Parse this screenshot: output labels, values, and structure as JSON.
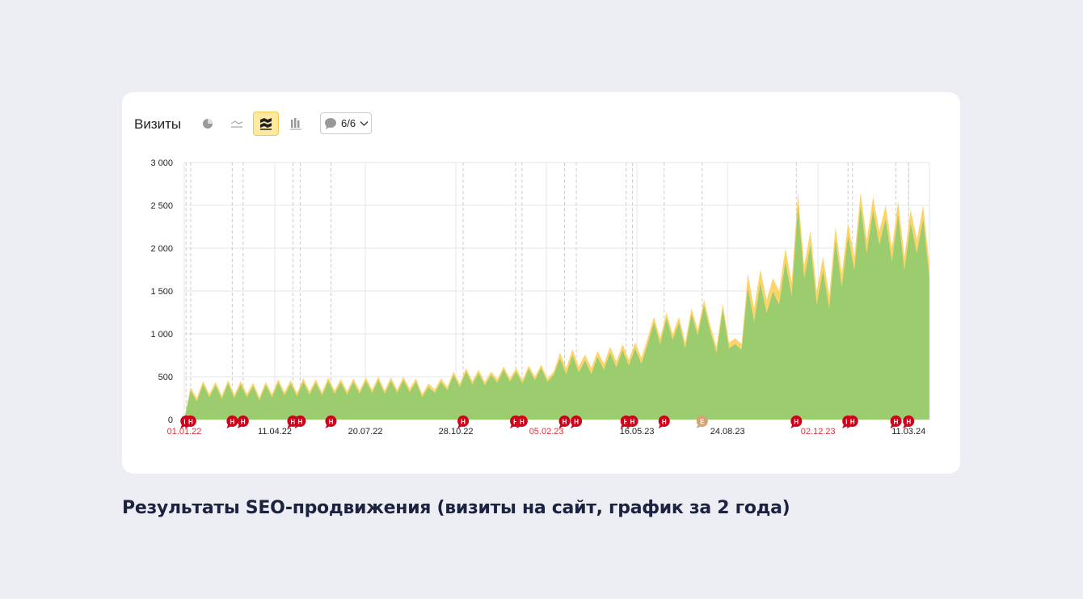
{
  "widget": {
    "title": "Визиты",
    "annotations_label": "6/6",
    "icons": [
      "pie-icon",
      "line-icon",
      "stacked-area-icon",
      "bar-icon",
      "comment-icon"
    ]
  },
  "caption": "Результаты SEO-продвижения (визиты на сайт, график за 2 года)",
  "colors": {
    "green": "#9bcd6e",
    "yellow": "#fbd46c",
    "marker": "#d0021b",
    "marker_alt": "#d4a373",
    "red_tick": "#e0303b"
  },
  "chart_data": {
    "type": "area",
    "stacked": true,
    "title": "Визиты",
    "xlabel": "",
    "ylabel": "",
    "ylim": [
      0,
      3000
    ],
    "xlim_days": [
      0,
      823
    ],
    "grid": true,
    "legend": "none",
    "yticks": [
      {
        "v": 0,
        "label": "0"
      },
      {
        "v": 500,
        "label": "500"
      },
      {
        "v": 1000,
        "label": "1 000"
      },
      {
        "v": 1500,
        "label": "1 500"
      },
      {
        "v": 2000,
        "label": "2 000"
      },
      {
        "v": 2500,
        "label": "2 500"
      },
      {
        "v": 3000,
        "label": "3 000"
      }
    ],
    "xticks": [
      {
        "d": 0,
        "label": "01.01.22",
        "red": true
      },
      {
        "d": 100,
        "label": "11.04.22"
      },
      {
        "d": 200,
        "label": "20.07.22"
      },
      {
        "d": 300,
        "label": "28.10.22"
      },
      {
        "d": 400,
        "label": "05.02.23",
        "red": true
      },
      {
        "d": 500,
        "label": "16.05.23"
      },
      {
        "d": 600,
        "label": "24.08.23"
      },
      {
        "d": 700,
        "label": "02.12.23",
        "red": true
      },
      {
        "d": 800,
        "label": "11.03.24"
      }
    ],
    "series": [
      {
        "name": "green",
        "values": [
          0,
          340,
          210,
          410,
          260,
          400,
          240,
          420,
          250,
          410,
          260,
          390,
          220,
          400,
          260,
          430,
          280,
          420,
          270,
          440,
          290,
          430,
          280,
          450,
          300,
          430,
          290,
          440,
          300,
          450,
          310,
          460,
          300,
          450,
          310,
          460,
          320,
          440,
          260,
          380,
          310,
          440,
          340,
          520,
          380,
          560,
          410,
          540,
          400,
          520,
          430,
          580,
          440,
          560,
          420,
          590,
          460,
          600,
          440,
          520,
          710,
          530,
          750,
          550,
          690,
          530,
          730,
          580,
          780,
          610,
          810,
          630,
          830,
          650,
          880,
          1130,
          880,
          1180,
          930,
          1130,
          830,
          1230,
          980,
          1330,
          1030,
          780,
          1280,
          830,
          880,
          810,
          1540,
          1140,
          1590,
          1240,
          1490,
          1340,
          1840,
          1440,
          2490,
          1640,
          2040,
          1340,
          1740,
          1290,
          2090,
          1540,
          2140,
          1740,
          2490,
          1940,
          2440,
          2040,
          2340,
          1840,
          2390,
          1740,
          2290,
          1940,
          2340,
          1640
        ]
      },
      {
        "name": "yellow",
        "values": [
          0,
          40,
          40,
          40,
          40,
          40,
          40,
          40,
          40,
          40,
          40,
          40,
          40,
          40,
          40,
          40,
          40,
          40,
          40,
          40,
          40,
          40,
          40,
          40,
          40,
          40,
          40,
          40,
          40,
          40,
          40,
          40,
          40,
          40,
          40,
          40,
          40,
          40,
          40,
          40,
          40,
          40,
          40,
          40,
          40,
          40,
          40,
          40,
          40,
          40,
          40,
          40,
          40,
          40,
          40,
          40,
          40,
          40,
          40,
          40,
          70,
          70,
          70,
          70,
          70,
          70,
          70,
          70,
          70,
          70,
          70,
          70,
          70,
          70,
          70,
          70,
          70,
          70,
          70,
          70,
          70,
          70,
          70,
          70,
          70,
          70,
          70,
          70,
          70,
          70,
          160,
          160,
          160,
          160,
          160,
          160,
          160,
          160,
          160,
          160,
          160,
          160,
          160,
          160,
          160,
          160,
          160,
          160,
          160,
          160,
          160,
          160,
          160,
          160,
          160,
          160,
          160,
          160,
          160,
          160
        ]
      }
    ],
    "annotations": [
      {
        "d": 2,
        "label": "Н"
      },
      {
        "d": 7,
        "label": "Н"
      },
      {
        "d": 53,
        "label": "Н"
      },
      {
        "d": 65,
        "label": "Н"
      },
      {
        "d": 120,
        "label": "Н"
      },
      {
        "d": 128,
        "label": "Н"
      },
      {
        "d": 162,
        "label": "Н"
      },
      {
        "d": 308,
        "label": "Н"
      },
      {
        "d": 366,
        "label": "Н"
      },
      {
        "d": 373,
        "label": "Н"
      },
      {
        "d": 420,
        "label": "Н"
      },
      {
        "d": 433,
        "label": "Н"
      },
      {
        "d": 488,
        "label": "Н"
      },
      {
        "d": 495,
        "label": "Н"
      },
      {
        "d": 530,
        "label": "Н"
      },
      {
        "d": 572,
        "label": "Е",
        "alt": true
      },
      {
        "d": 676,
        "label": "Н"
      },
      {
        "d": 733,
        "label": "Н"
      },
      {
        "d": 738,
        "label": "Н"
      },
      {
        "d": 786,
        "label": "Н"
      },
      {
        "d": 800,
        "label": "Н"
      }
    ]
  }
}
